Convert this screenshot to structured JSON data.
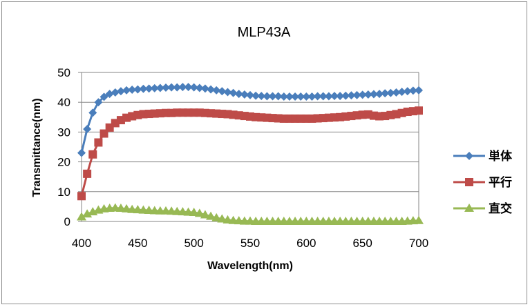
{
  "chart_data": {
    "type": "line",
    "title": "MLP43A",
    "xlabel": "Wavelength(nm)",
    "ylabel": "Transmittance(nm)",
    "xlim": [
      400,
      700
    ],
    "ylim": [
      0,
      50
    ],
    "xticks": [
      400,
      450,
      500,
      550,
      600,
      650,
      700
    ],
    "yticks": [
      0,
      10,
      20,
      30,
      40,
      50
    ],
    "grid": true,
    "legend_position": "right",
    "series": [
      {
        "name": "単体",
        "color": "#4a7ebb",
        "marker": "diamond",
        "x": [
          400,
          405,
          410,
          415,
          420,
          425,
          430,
          435,
          440,
          445,
          450,
          455,
          460,
          465,
          470,
          475,
          480,
          485,
          490,
          495,
          500,
          505,
          510,
          515,
          520,
          525,
          530,
          535,
          540,
          545,
          550,
          555,
          560,
          565,
          570,
          575,
          580,
          585,
          590,
          595,
          600,
          605,
          610,
          615,
          620,
          625,
          630,
          635,
          640,
          645,
          650,
          655,
          660,
          665,
          670,
          675,
          680,
          685,
          690,
          695,
          700
        ],
        "y": [
          23,
          31,
          36.5,
          40,
          41.8,
          42.8,
          43.3,
          43.7,
          44,
          44.2,
          44.3,
          44.5,
          44.6,
          44.7,
          44.8,
          44.9,
          45,
          45,
          45.1,
          45.1,
          45,
          44.8,
          44.6,
          44.3,
          44,
          43.7,
          43.4,
          43.1,
          42.8,
          42.6,
          42.4,
          42.2,
          42.1,
          42,
          42,
          42,
          41.9,
          41.9,
          41.9,
          41.9,
          41.9,
          41.9,
          42,
          42,
          42,
          42.1,
          42.1,
          42.2,
          42.3,
          42.4,
          42.5,
          42.6,
          42.7,
          42.8,
          43,
          43.1,
          43.3,
          43.5,
          43.7,
          43.9,
          44
        ]
      },
      {
        "name": "平行",
        "color": "#be4b48",
        "marker": "square",
        "x": [
          400,
          405,
          410,
          415,
          420,
          425,
          430,
          435,
          440,
          445,
          450,
          455,
          460,
          465,
          470,
          475,
          480,
          485,
          490,
          495,
          500,
          505,
          510,
          515,
          520,
          525,
          530,
          535,
          540,
          545,
          550,
          555,
          560,
          565,
          570,
          575,
          580,
          585,
          590,
          595,
          600,
          605,
          610,
          615,
          620,
          625,
          630,
          635,
          640,
          645,
          650,
          655,
          660,
          665,
          670,
          675,
          680,
          685,
          690,
          695,
          700
        ],
        "y": [
          8.5,
          16,
          22.5,
          26.5,
          29.5,
          31.5,
          33,
          34,
          34.8,
          35.3,
          35.7,
          36,
          36.1,
          36.2,
          36.3,
          36.4,
          36.4,
          36.5,
          36.5,
          36.5,
          36.5,
          36.5,
          36.4,
          36.3,
          36.2,
          36.1,
          36,
          35.8,
          35.6,
          35.4,
          35.2,
          35,
          34.9,
          34.8,
          34.7,
          34.6,
          34.5,
          34.5,
          34.5,
          34.5,
          34.5,
          34.5,
          34.6,
          34.7,
          34.8,
          34.9,
          35,
          35.2,
          35.4,
          35.6,
          35.8,
          35.9,
          35.5,
          35.3,
          35.4,
          35.7,
          36,
          36.4,
          36.8,
          37,
          37.2
        ]
      },
      {
        "name": "直交",
        "color": "#98b954",
        "marker": "triangle",
        "x": [
          400,
          405,
          410,
          415,
          420,
          425,
          430,
          435,
          440,
          445,
          450,
          455,
          460,
          465,
          470,
          475,
          480,
          485,
          490,
          495,
          500,
          505,
          510,
          515,
          520,
          525,
          530,
          535,
          540,
          545,
          550,
          555,
          560,
          565,
          570,
          575,
          580,
          585,
          590,
          595,
          600,
          605,
          610,
          615,
          620,
          625,
          630,
          635,
          640,
          645,
          650,
          655,
          660,
          665,
          670,
          675,
          680,
          685,
          690,
          695,
          700
        ],
        "y": [
          1.5,
          2.5,
          3.2,
          3.8,
          4.2,
          4.4,
          4.5,
          4.4,
          4.2,
          4,
          3.9,
          3.8,
          3.7,
          3.6,
          3.5,
          3.5,
          3.4,
          3.3,
          3.2,
          3.1,
          3,
          2.7,
          2.2,
          1.7,
          1.2,
          0.8,
          0.5,
          0.3,
          0.2,
          0.1,
          0.1,
          0,
          0,
          0,
          0,
          0,
          0,
          0,
          0,
          0,
          0,
          0,
          0,
          0,
          0,
          0,
          0,
          0,
          0,
          0,
          0,
          0,
          0,
          0,
          0,
          0,
          0,
          0,
          0.1,
          0.2,
          0.3
        ]
      }
    ]
  }
}
